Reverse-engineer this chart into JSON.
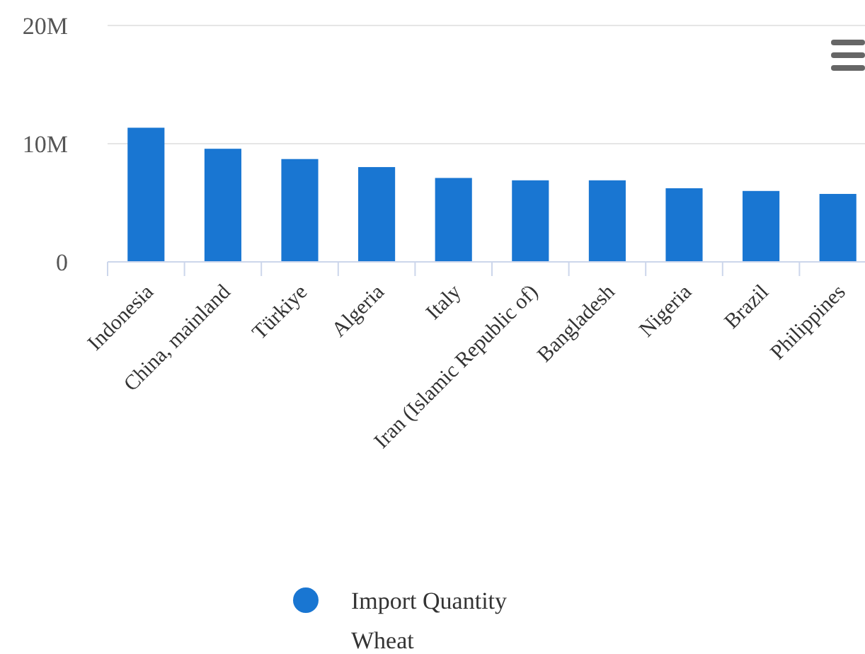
{
  "chart_data": {
    "type": "bar",
    "categories": [
      "Indonesia",
      "China, mainland",
      "Türkiye",
      "Algeria",
      "Italy",
      "Iran (Islamic Republic of)",
      "Bangladesh",
      "Nigeria",
      "Brazil",
      "Philippines"
    ],
    "series": [
      {
        "name": "Import Quantity Wheat",
        "color": "#1976d2",
        "values": [
          11350000,
          9570000,
          8700000,
          8020000,
          7100000,
          6900000,
          6900000,
          6230000,
          6000000,
          5750000
        ]
      }
    ],
    "ylim": [
      0,
      20000000
    ],
    "yticks": [
      {
        "value": 0,
        "label": "0"
      },
      {
        "value": 10000000,
        "label": "10M"
      },
      {
        "value": 20000000,
        "label": "20M"
      }
    ],
    "grid": "y",
    "legend": "bottom"
  }
}
